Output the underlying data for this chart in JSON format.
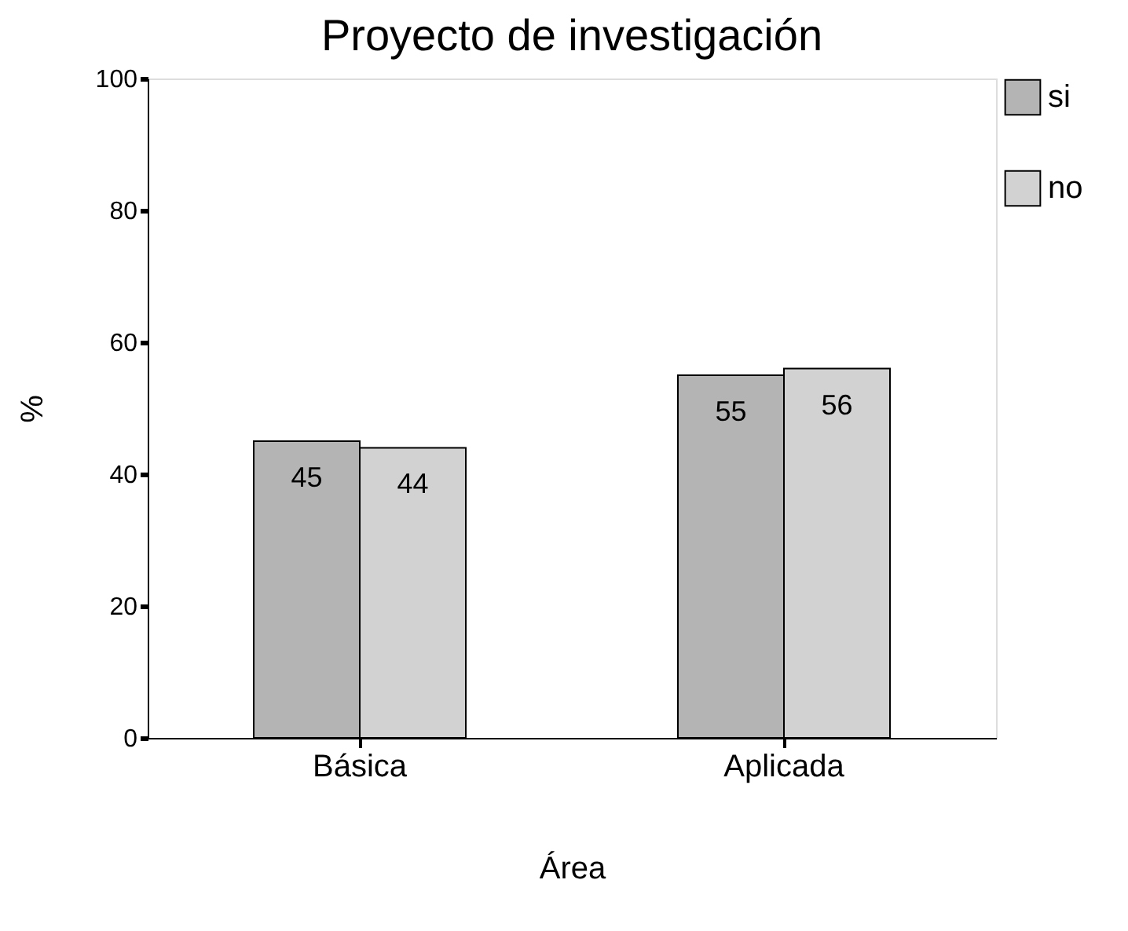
{
  "chart_data": {
    "type": "bar",
    "title": "Proyecto de investigación",
    "xlabel": "Área",
    "ylabel": "%",
    "categories": [
      "Básica",
      "Aplicada"
    ],
    "series": [
      {
        "name": "si",
        "color": "#b4b4b4",
        "values": [
          45,
          55
        ]
      },
      {
        "name": "no",
        "color": "#d2d2d2",
        "values": [
          44,
          56
        ]
      }
    ],
    "ylim": [
      0,
      100
    ],
    "yticks": [
      0,
      20,
      40,
      60,
      80,
      100
    ],
    "grid": false,
    "legend": "right",
    "data_labels": true
  }
}
